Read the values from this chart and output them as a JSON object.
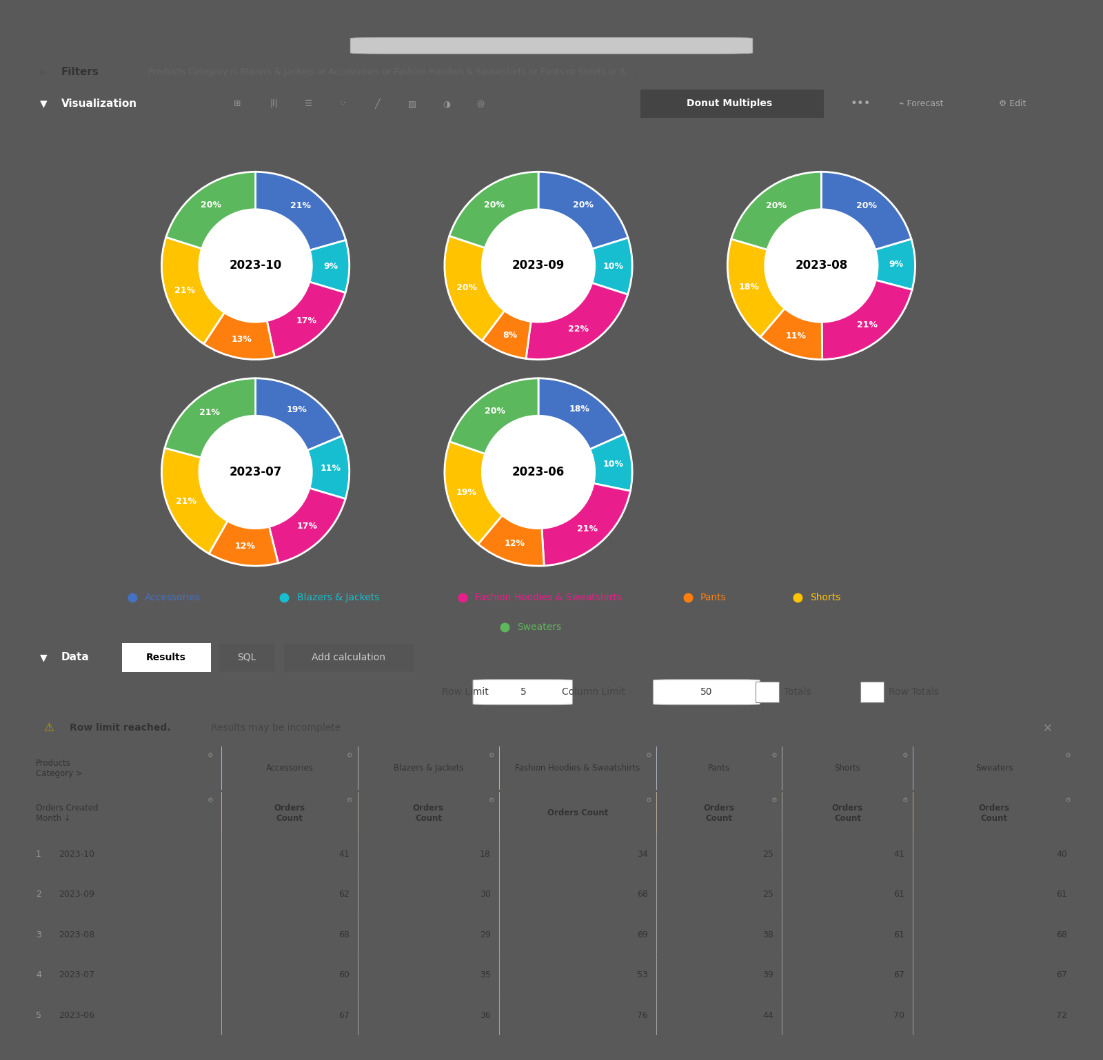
{
  "months": [
    "2023-10",
    "2023-09",
    "2023-08",
    "2023-07",
    "2023-06"
  ],
  "categories": [
    "Accessories",
    "Blazers & Jackets",
    "Fashion Hoodies & Sweatshirts",
    "Pants",
    "Shorts",
    "Sweaters"
  ],
  "colors": [
    "#4472C4",
    "#17BECF",
    "#E91E8C",
    "#FF7F0E",
    "#FFC300",
    "#5CB85C"
  ],
  "data": {
    "2023-10": [
      41,
      18,
      34,
      25,
      41,
      40
    ],
    "2023-09": [
      62,
      30,
      68,
      25,
      61,
      61
    ],
    "2023-08": [
      68,
      29,
      69,
      38,
      61,
      68
    ],
    "2023-07": [
      60,
      35,
      53,
      39,
      67,
      67
    ],
    "2023-06": [
      67,
      36,
      76,
      44,
      70,
      72
    ]
  },
  "table_rows": [
    [
      "2023-10",
      41,
      18,
      34,
      25,
      41,
      40
    ],
    [
      "2023-09",
      62,
      30,
      68,
      25,
      61,
      61
    ],
    [
      "2023-08",
      68,
      29,
      69,
      38,
      61,
      68
    ],
    [
      "2023-07",
      60,
      35,
      53,
      39,
      67,
      67
    ],
    [
      "2023-06",
      67,
      36,
      76,
      44,
      70,
      72
    ]
  ],
  "bg_color": "#595959",
  "panel_color": "#ffffff",
  "dark_bar_color": "#2b2b2b",
  "legend_text_colors": [
    "#4472C4",
    "#17BECF",
    "#E91E8C",
    "#FF7F0E",
    "#FFC300",
    "#5CB85C"
  ],
  "legend_labels": [
    "Accessories",
    "Blazers & Jackets",
    "Fashion Hoodies & Sweatshirts",
    "Pants",
    "Shorts",
    "Sweaters"
  ]
}
